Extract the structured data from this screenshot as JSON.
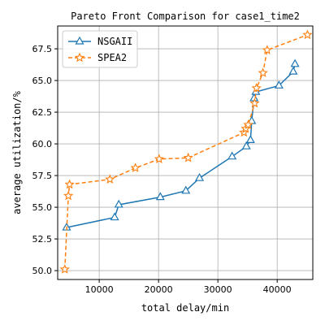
{
  "chart_data": {
    "type": "line",
    "title": "Pareto Front Comparison for case1_time2",
    "xlabel": "total delay/min",
    "ylabel": "average utilization/%",
    "xlim": [
      3000,
      46000
    ],
    "ylim": [
      49.3,
      69.3
    ],
    "xticks": [
      10000,
      20000,
      30000,
      40000
    ],
    "yticks": [
      50.0,
      52.5,
      55.0,
      57.5,
      60.0,
      62.5,
      65.0,
      67.5
    ],
    "grid": true,
    "legend_position": "top-left",
    "series": [
      {
        "name": "NSGAII",
        "color": "#1f77b4",
        "linestyle": "solid",
        "marker": "triangle",
        "x": [
          4500,
          12600,
          13300,
          20300,
          24600,
          26900,
          32400,
          34800,
          35500,
          35700,
          36100,
          36400,
          40300,
          42700,
          43000
        ],
        "y": [
          53.4,
          54.2,
          55.2,
          55.8,
          56.3,
          57.3,
          59.0,
          59.8,
          60.3,
          61.8,
          63.6,
          64.1,
          64.6,
          65.7,
          66.3
        ]
      },
      {
        "name": "SPEA2",
        "color": "#ff7f0e",
        "linestyle": "dashed",
        "marker": "star",
        "x": [
          4200,
          4800,
          5000,
          11800,
          16100,
          20100,
          25000,
          34400,
          34700,
          35100,
          36200,
          36500,
          37600,
          38300,
          45100
        ],
        "y": [
          50.1,
          55.9,
          56.8,
          57.2,
          58.1,
          58.8,
          58.9,
          60.9,
          61.2,
          61.5,
          63.2,
          64.4,
          65.6,
          67.4,
          68.6
        ]
      }
    ]
  }
}
